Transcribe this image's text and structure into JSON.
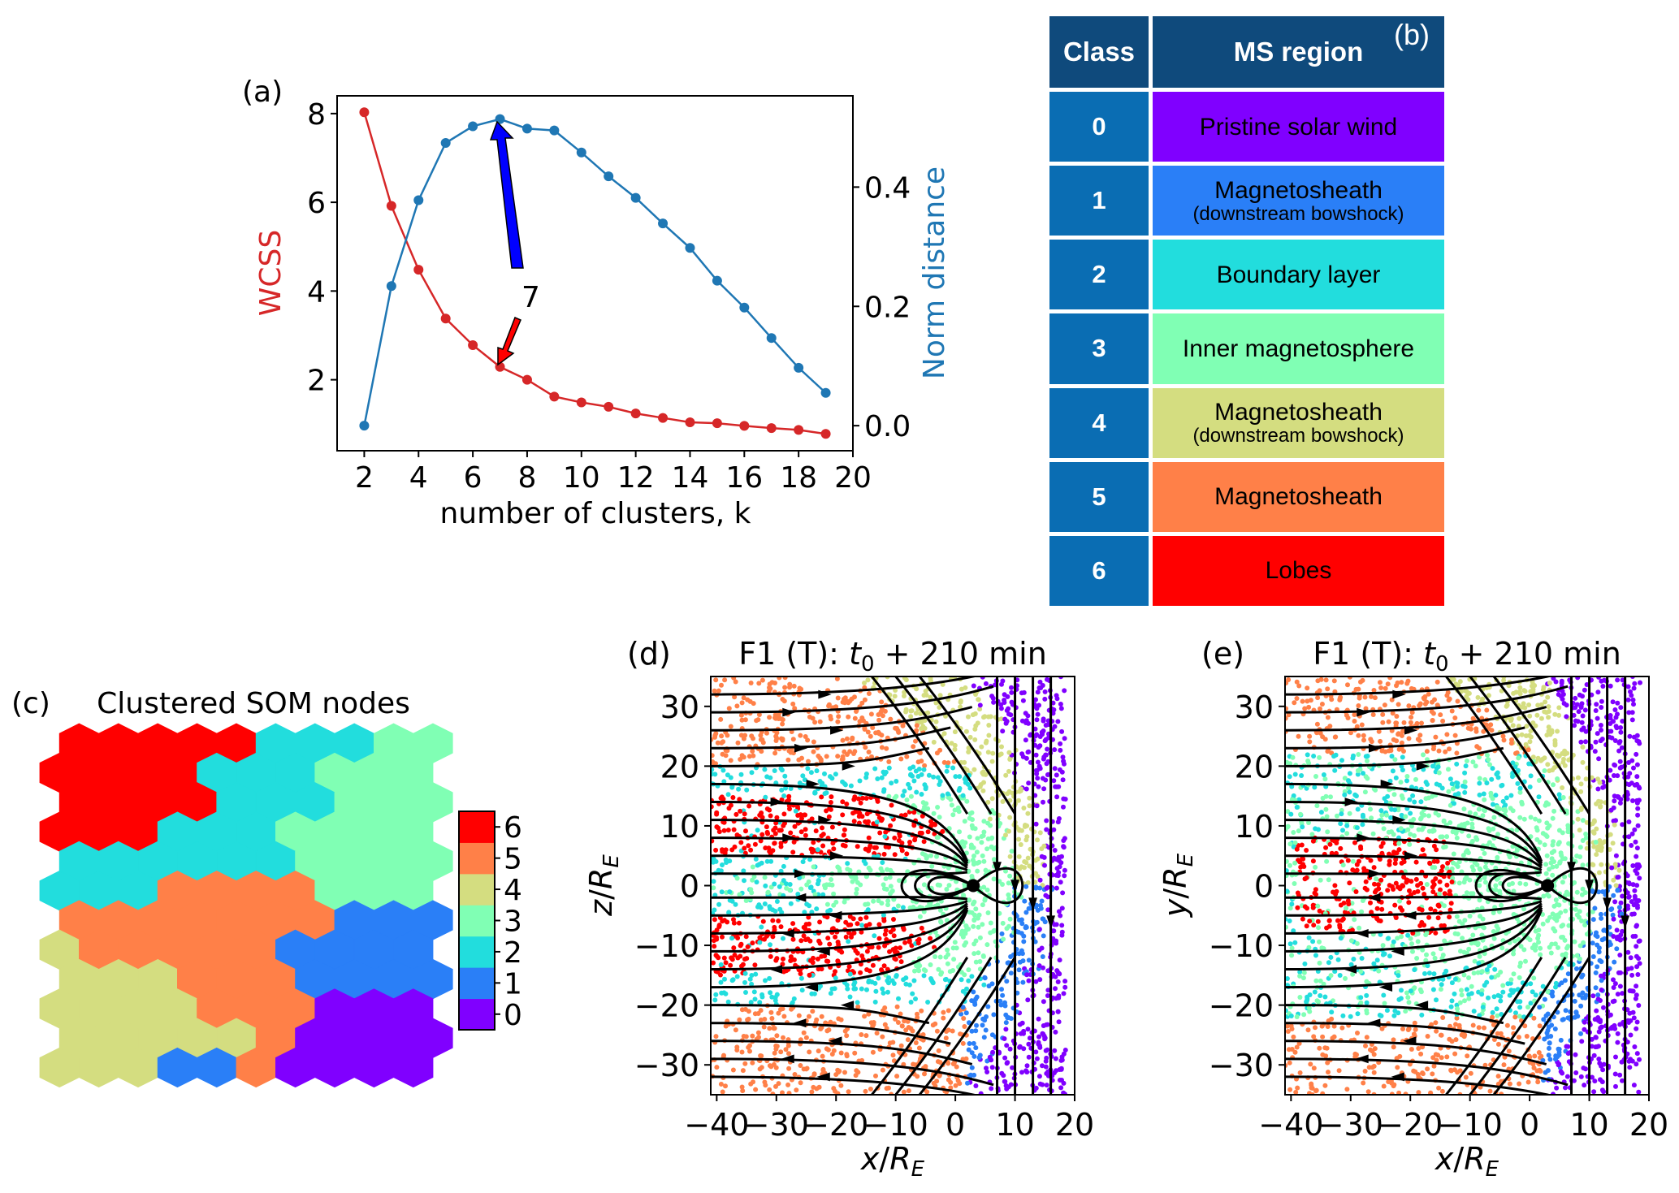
{
  "class_colors": [
    "#8000ff",
    "#2a7ff7",
    "#22dddd",
    "#80ffb4",
    "#d4dd80",
    "#ff8048",
    "#ff0000"
  ],
  "chart_data": [
    {
      "panel": "(a)",
      "type": "line",
      "x": [
        2,
        3,
        4,
        5,
        6,
        7,
        8,
        9,
        10,
        11,
        12,
        13,
        14,
        15,
        16,
        17,
        18,
        19
      ],
      "series": [
        {
          "name": "WCSS",
          "axis": "left",
          "color": "#d62728",
          "values": [
            8.03,
            5.92,
            4.48,
            3.38,
            2.78,
            2.29,
            2.0,
            1.62,
            1.49,
            1.39,
            1.24,
            1.14,
            1.04,
            1.02,
            0.96,
            0.91,
            0.87,
            0.78
          ]
        },
        {
          "name": "Norm distance",
          "axis": "right",
          "color": "#1f77b4",
          "values": [
            0.0,
            0.234,
            0.378,
            0.474,
            0.502,
            0.514,
            0.498,
            0.495,
            0.458,
            0.418,
            0.382,
            0.339,
            0.298,
            0.243,
            0.198,
            0.147,
            0.097,
            0.055
          ]
        }
      ],
      "xlabel": "number of clusters, k",
      "ylabel": "WCSS",
      "y2label": "Norm distance",
      "xlim": [
        1.0,
        20
      ],
      "ylim": [
        0.4,
        8.4
      ],
      "y2lim": [
        -0.042,
        0.553
      ],
      "xticks": [
        "2",
        "4",
        "6",
        "8",
        "10",
        "12",
        "14",
        "16",
        "18",
        "20"
      ],
      "yticks": [
        "2",
        "4",
        "6",
        "8"
      ],
      "y2ticks": [
        "0.0",
        "0.2",
        "0.4"
      ],
      "annotation": {
        "text": "7",
        "k": 7
      },
      "grid": false
    },
    {
      "panel": "(c)",
      "type": "heatmap",
      "title": "Clustered SOM nodes",
      "grid": [
        "6666622233",
        "6666222333",
        "6666222333",
        "6662223333",
        "2222223333",
        "2225555333",
        "5555555111",
        "4555551111",
        "4445551111",
        "4444555000",
        "4444450000",
        "4441150000"
      ],
      "colorbar_ticks": [
        "0",
        "1",
        "2",
        "3",
        "4",
        "5",
        "6"
      ]
    },
    {
      "panel": "(d)",
      "type": "scatter",
      "title": {
        "prefix": "F1 (T): ",
        "var": "t",
        "sub": "0",
        "suffix": " + 210 min"
      },
      "xlabel": {
        "var": "x",
        "unit": "R",
        "sub": "E"
      },
      "ylabel": {
        "var": "z",
        "unit": "R",
        "sub": "E"
      },
      "xlim": [
        -41,
        20
      ],
      "ylim": [
        -35,
        35
      ],
      "xticks": [
        "−40",
        "−30",
        "−20",
        "−10",
        "0",
        "10",
        "20"
      ],
      "yticks": [
        "30",
        "20",
        "10",
        "0",
        "−10",
        "−20",
        "−30"
      ],
      "color_by": "class"
    },
    {
      "panel": "(e)",
      "type": "scatter",
      "title": {
        "prefix": "F1 (T): ",
        "var": "t",
        "sub": "0",
        "suffix": " + 210 min"
      },
      "xlabel": {
        "var": "x",
        "unit": "R",
        "sub": "E"
      },
      "ylabel": {
        "var": "y",
        "unit": "R",
        "sub": "E"
      },
      "xlim": [
        -41,
        20
      ],
      "ylim": [
        -35,
        35
      ],
      "xticks": [
        "−40",
        "−30",
        "−20",
        "−10",
        "0",
        "10",
        "20"
      ],
      "yticks": [
        "30",
        "20",
        "10",
        "0",
        "−10",
        "−20",
        "−30"
      ],
      "color_by": "class"
    }
  ],
  "table": {
    "panel": "(b)",
    "headers": [
      "Class",
      "MS region"
    ],
    "rows": [
      {
        "cls": "0",
        "region": "Pristine solar wind",
        "sub": ""
      },
      {
        "cls": "1",
        "region": "Magnetosheath",
        "sub": "(downstream bowshock)"
      },
      {
        "cls": "2",
        "region": "Boundary layer",
        "sub": ""
      },
      {
        "cls": "3",
        "region": "Inner magnetosphere",
        "sub": ""
      },
      {
        "cls": "4",
        "region": "Magnetosheath",
        "sub": "(downstream bowshock)"
      },
      {
        "cls": "5",
        "region": "Magnetosheath",
        "sub": ""
      },
      {
        "cls": "6",
        "region": "Lobes",
        "sub": ""
      }
    ]
  }
}
